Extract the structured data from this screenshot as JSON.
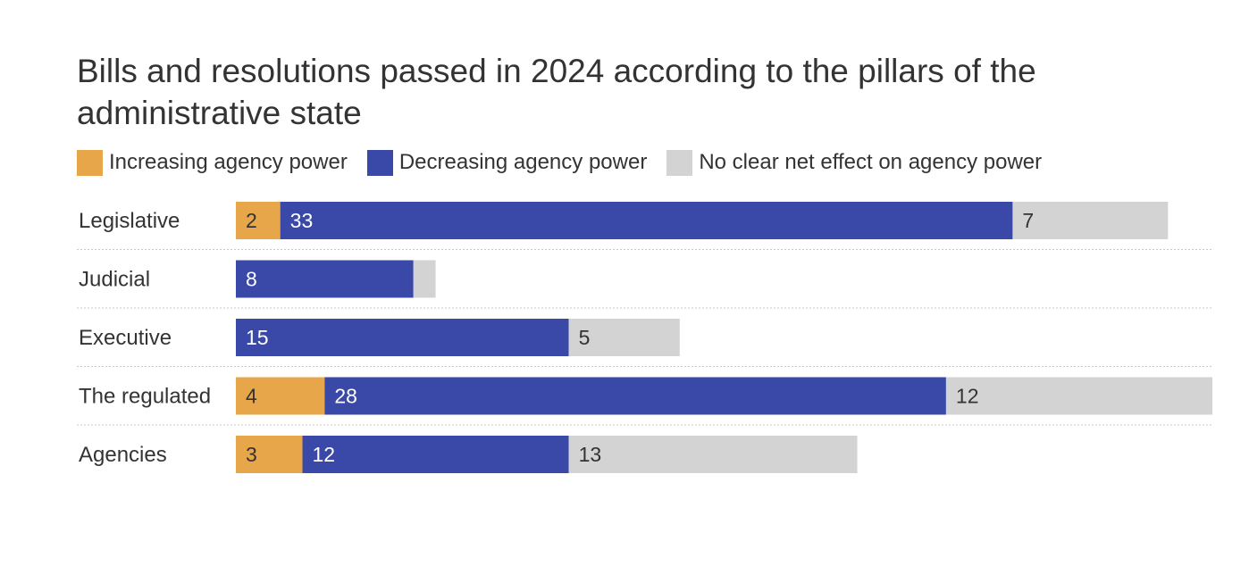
{
  "chart_data": {
    "type": "bar",
    "orientation": "horizontal",
    "stacked": true,
    "title": "Bills and resolutions passed in 2024 according to the pillars of the administrative state",
    "categories": [
      "Legislative",
      "Judicial",
      "Executive",
      "The regulated",
      "Agencies"
    ],
    "series": [
      {
        "name": "Increasing agency power",
        "color": "#E8A64A",
        "values": [
          2,
          0,
          0,
          4,
          3
        ]
      },
      {
        "name": "Decreasing agency power",
        "color": "#3A48A8",
        "values": [
          33,
          8,
          15,
          28,
          12
        ]
      },
      {
        "name": "No clear net effect on agency power",
        "color": "#D3D3D3",
        "values": [
          7,
          1,
          5,
          12,
          13
        ]
      }
    ],
    "data_labels_shown": [
      [
        true,
        false,
        false,
        true,
        true
      ],
      [
        true,
        true,
        true,
        true,
        true
      ],
      [
        true,
        false,
        true,
        true,
        true
      ]
    ],
    "xlim": [
      0,
      44
    ],
    "legend_position": "top-left",
    "grid": "dotted row separators"
  }
}
